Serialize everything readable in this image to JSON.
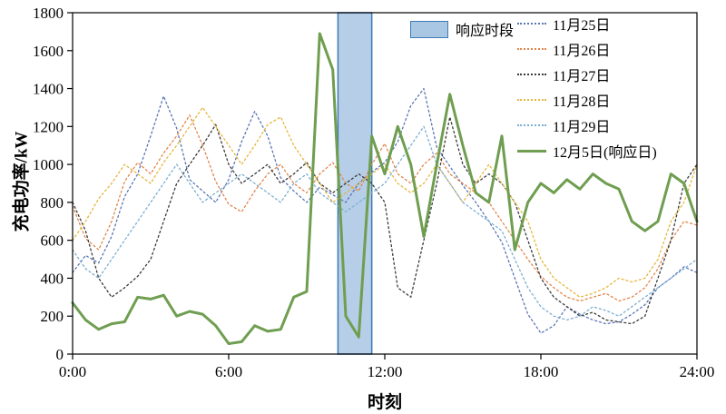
{
  "chart_data": {
    "type": "line",
    "title": "",
    "xlabel": "时刻",
    "ylabel": "充电功率/kW",
    "xlim": [
      0,
      24
    ],
    "ylim": [
      0,
      1800
    ],
    "grid": false,
    "legend_position": "top-right-inside",
    "x_ticks": [
      {
        "v": 0,
        "label": "0:00"
      },
      {
        "v": 6,
        "label": "6:00"
      },
      {
        "v": 12,
        "label": "12:00"
      },
      {
        "v": 18,
        "label": "18:00"
      },
      {
        "v": 24,
        "label": "24:00"
      }
    ],
    "y_ticks": [
      0,
      200,
      400,
      600,
      800,
      1000,
      1200,
      1400,
      1600,
      1800
    ],
    "x": [
      0,
      0.5,
      1,
      1.5,
      2,
      2.5,
      3,
      3.5,
      4,
      4.5,
      5,
      5.5,
      6,
      6.5,
      7,
      7.5,
      8,
      8.5,
      9,
      9.5,
      10,
      10.5,
      11,
      11.5,
      12,
      12.5,
      13,
      13.5,
      14,
      14.5,
      15,
      15.5,
      16,
      16.5,
      17,
      17.5,
      18,
      18.5,
      19,
      19.5,
      20,
      20.5,
      21,
      21.5,
      22,
      22.5,
      23,
      23.5,
      24
    ],
    "band": {
      "label": "响应时段",
      "x_start": 10.2,
      "x_end": 11.5,
      "fill": "#a9c6e3",
      "border": "#3e7bb6"
    },
    "series": [
      {
        "name": "11月25日",
        "color": "#5b76b5",
        "style": "dotted",
        "values": [
          430,
          520,
          480,
          620,
          830,
          950,
          1150,
          1360,
          1190,
          920,
          860,
          800,
          920,
          1120,
          1280,
          1150,
          930,
          860,
          800,
          880,
          840,
          800,
          900,
          960,
          1010,
          1120,
          1310,
          1400,
          1090,
          990,
          890,
          800,
          700,
          590,
          400,
          210,
          110,
          150,
          250,
          210,
          180,
          160,
          170,
          210,
          260,
          350,
          400,
          460,
          430
        ]
      },
      {
        "name": "11月26日",
        "color": "#e2854a",
        "style": "dotted",
        "values": [
          780,
          610,
          550,
          700,
          910,
          1010,
          950,
          1060,
          1150,
          1260,
          1100,
          910,
          790,
          750,
          860,
          950,
          1000,
          900,
          850,
          950,
          1010,
          900,
          860,
          1000,
          1110,
          950,
          900,
          1000,
          1060,
          950,
          900,
          850,
          800,
          700,
          600,
          500,
          410,
          350,
          300,
          280,
          300,
          320,
          280,
          300,
          350,
          450,
          600,
          700,
          680
        ]
      },
      {
        "name": "11月27日",
        "color": "#3a3a3a",
        "style": "dotted",
        "values": [
          800,
          650,
          400,
          300,
          350,
          410,
          500,
          700,
          900,
          1000,
          1100,
          1210,
          1000,
          900,
          950,
          1000,
          900,
          950,
          1010,
          900,
          850,
          900,
          950,
          900,
          800,
          350,
          300,
          600,
          900,
          1250,
          1000,
          900,
          950,
          900,
          800,
          600,
          400,
          300,
          250,
          200,
          220,
          180,
          170,
          160,
          200,
          400,
          600,
          900,
          1000
        ]
      },
      {
        "name": "11月28日",
        "color": "#e6b63c",
        "style": "dotted",
        "values": [
          600,
          700,
          820,
          900,
          1000,
          950,
          900,
          1010,
          1100,
          1200,
          1300,
          1200,
          1100,
          1000,
          1100,
          1210,
          1250,
          1100,
          1000,
          900,
          800,
          850,
          900,
          950,
          1000,
          900,
          850,
          900,
          1000,
          900,
          800,
          900,
          1000,
          900,
          800,
          700,
          500,
          400,
          350,
          300,
          320,
          350,
          400,
          380,
          400,
          500,
          700,
          800,
          1000
        ]
      },
      {
        "name": "11月29日",
        "color": "#7bafd4",
        "style": "dotted",
        "values": [
          550,
          450,
          400,
          500,
          600,
          700,
          800,
          900,
          1000,
          900,
          800,
          850,
          900,
          950,
          900,
          850,
          800,
          900,
          950,
          850,
          800,
          750,
          800,
          850,
          900,
          1000,
          1100,
          1200,
          1000,
          900,
          800,
          750,
          700,
          650,
          500,
          350,
          250,
          200,
          180,
          200,
          250,
          230,
          200,
          250,
          300,
          350,
          400,
          450,
          500
        ]
      },
      {
        "name": "12月5日(响应日)",
        "color": "#6f9e50",
        "style": "solid",
        "values": [
          270,
          180,
          130,
          160,
          170,
          300,
          290,
          310,
          200,
          225,
          210,
          150,
          55,
          65,
          150,
          120,
          130,
          300,
          330,
          1690,
          1500,
          200,
          90,
          1150,
          950,
          1200,
          1000,
          620,
          1000,
          1370,
          1100,
          850,
          800,
          1150,
          550,
          800,
          900,
          850,
          920,
          870,
          950,
          900,
          870,
          700,
          650,
          700,
          950,
          900,
          700
        ]
      }
    ]
  }
}
